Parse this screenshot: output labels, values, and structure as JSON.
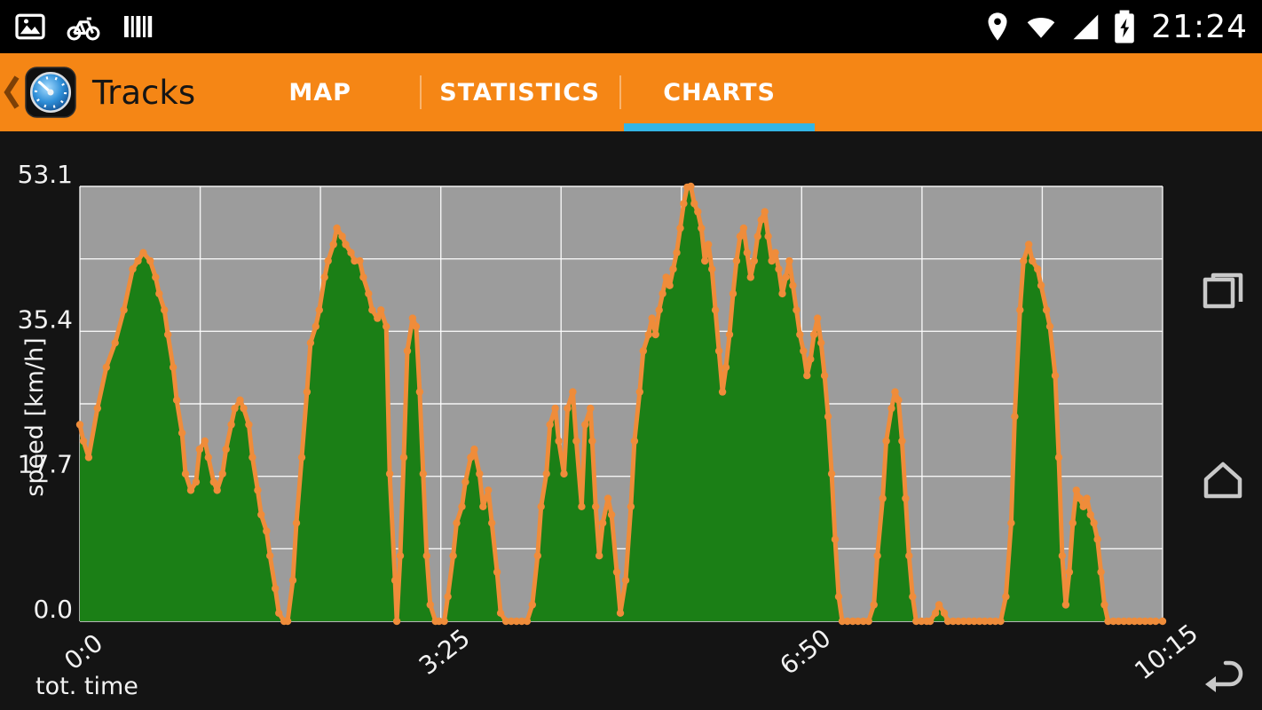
{
  "status_bar": {
    "time": "21:24",
    "left_icons": [
      "gallery-icon",
      "bicycle-icon",
      "barcode-icon"
    ],
    "right_icons": [
      "location-icon",
      "wifi-icon",
      "signal-icon",
      "battery-charging-icon"
    ]
  },
  "action_bar": {
    "title": "Tracks",
    "bar_color": "#f58615",
    "accent_color": "#33b5e5",
    "tabs": [
      {
        "label": "MAP",
        "active": false
      },
      {
        "label": "STATISTICS",
        "active": false
      },
      {
        "label": "CHARTS",
        "active": true
      }
    ]
  },
  "nav_bar": {
    "icons": [
      "recents-icon",
      "home-icon",
      "back-icon"
    ]
  },
  "chart_data": {
    "type": "area",
    "title": "",
    "xlabel": "tot. time",
    "ylabel": "speed [km/h]",
    "x_unit": "minutes",
    "xlim": [
      0,
      615
    ],
    "ylim": [
      0,
      53.1
    ],
    "grid": true,
    "grid_x_divisions": 9,
    "grid_y_divisions": 6,
    "x_ticks": [
      {
        "value": 0,
        "label": "0:0"
      },
      {
        "value": 205,
        "label": "3:25"
      },
      {
        "value": 410,
        "label": "6:50"
      },
      {
        "value": 615,
        "label": "10:15"
      }
    ],
    "y_ticks": [
      {
        "value": 0,
        "label": "0.0"
      },
      {
        "value": 17.7,
        "label": "17.7"
      },
      {
        "value": 35.4,
        "label": "35.4"
      },
      {
        "value": 53.1,
        "label": "53.1"
      }
    ],
    "colors": {
      "plot_bg": "#9c9c9c",
      "grid": "#ffffff",
      "line": "#ef8c3a",
      "fill": "#1b7f16",
      "label": "#f2f2f2"
    },
    "series": [
      {
        "name": "speed",
        "points": [
          [
            0,
            24
          ],
          [
            2,
            22
          ],
          [
            5,
            20
          ],
          [
            10,
            26
          ],
          [
            15,
            31
          ],
          [
            20,
            34
          ],
          [
            25,
            38
          ],
          [
            30,
            43
          ],
          [
            33,
            44
          ],
          [
            36,
            45
          ],
          [
            40,
            44
          ],
          [
            43,
            42
          ],
          [
            45,
            40
          ],
          [
            48,
            38
          ],
          [
            50,
            35
          ],
          [
            53,
            31
          ],
          [
            55,
            27
          ],
          [
            58,
            23
          ],
          [
            60,
            18
          ],
          [
            63,
            16
          ],
          [
            66,
            17
          ],
          [
            68,
            21
          ],
          [
            71,
            22
          ],
          [
            73,
            20
          ],
          [
            76,
            17
          ],
          [
            78,
            16
          ],
          [
            81,
            18
          ],
          [
            83,
            21
          ],
          [
            86,
            24
          ],
          [
            88,
            26
          ],
          [
            91,
            27
          ],
          [
            93,
            26
          ],
          [
            96,
            24
          ],
          [
            98,
            20
          ],
          [
            101,
            16
          ],
          [
            103,
            13
          ],
          [
            106,
            11
          ],
          [
            108,
            8
          ],
          [
            111,
            4
          ],
          [
            113,
            1
          ],
          [
            116,
            0
          ],
          [
            118,
            0
          ],
          [
            121,
            5
          ],
          [
            123,
            12
          ],
          [
            126,
            20
          ],
          [
            129,
            28
          ],
          [
            131,
            34
          ],
          [
            134,
            36
          ],
          [
            136,
            38
          ],
          [
            139,
            42
          ],
          [
            141,
            44
          ],
          [
            144,
            46
          ],
          [
            146,
            48
          ],
          [
            149,
            47
          ],
          [
            151,
            46
          ],
          [
            154,
            45
          ],
          [
            156,
            44
          ],
          [
            159,
            44
          ],
          [
            161,
            42
          ],
          [
            164,
            40
          ],
          [
            166,
            38
          ],
          [
            169,
            37
          ],
          [
            171,
            38
          ],
          [
            174,
            36
          ],
          [
            176,
            18
          ],
          [
            179,
            5
          ],
          [
            180,
            0
          ],
          [
            182,
            8
          ],
          [
            184,
            20
          ],
          [
            186,
            33
          ],
          [
            189,
            37
          ],
          [
            191,
            36
          ],
          [
            193,
            28
          ],
          [
            195,
            18
          ],
          [
            197,
            8
          ],
          [
            199,
            2
          ],
          [
            202,
            0
          ],
          [
            204,
            0
          ],
          [
            207,
            0
          ],
          [
            209,
            3
          ],
          [
            212,
            8
          ],
          [
            214,
            12
          ],
          [
            217,
            14
          ],
          [
            219,
            17
          ],
          [
            222,
            20
          ],
          [
            224,
            21
          ],
          [
            227,
            18
          ],
          [
            229,
            14
          ],
          [
            232,
            16
          ],
          [
            234,
            12
          ],
          [
            237,
            6
          ],
          [
            239,
            1
          ],
          [
            242,
            0
          ],
          [
            245,
            0
          ],
          [
            248,
            0
          ],
          [
            251,
            0
          ],
          [
            254,
            0
          ],
          [
            257,
            2
          ],
          [
            260,
            8
          ],
          [
            262,
            14
          ],
          [
            265,
            18
          ],
          [
            267,
            24
          ],
          [
            270,
            26
          ],
          [
            272,
            22
          ],
          [
            275,
            18
          ],
          [
            277,
            26
          ],
          [
            280,
            28
          ],
          [
            282,
            22
          ],
          [
            285,
            14
          ],
          [
            287,
            24
          ],
          [
            290,
            26
          ],
          [
            291,
            22
          ],
          [
            293,
            14
          ],
          [
            295,
            8
          ],
          [
            297,
            12
          ],
          [
            300,
            15
          ],
          [
            302,
            13
          ],
          [
            305,
            6
          ],
          [
            307,
            1
          ],
          [
            310,
            5
          ],
          [
            313,
            14
          ],
          [
            315,
            22
          ],
          [
            318,
            28
          ],
          [
            320,
            33
          ],
          [
            323,
            35
          ],
          [
            325,
            37
          ],
          [
            327,
            35
          ],
          [
            329,
            38
          ],
          [
            331,
            40
          ],
          [
            333,
            42
          ],
          [
            335,
            41
          ],
          [
            337,
            43
          ],
          [
            339,
            45
          ],
          [
            341,
            48
          ],
          [
            343,
            51
          ],
          [
            345,
            53
          ],
          [
            347,
            53.1
          ],
          [
            349,
            51
          ],
          [
            351,
            50
          ],
          [
            353,
            48
          ],
          [
            355,
            44
          ],
          [
            357,
            46
          ],
          [
            359,
            43
          ],
          [
            361,
            38
          ],
          [
            363,
            33
          ],
          [
            365,
            28
          ],
          [
            367,
            31
          ],
          [
            369,
            35
          ],
          [
            371,
            40
          ],
          [
            373,
            44
          ],
          [
            375,
            47
          ],
          [
            377,
            48
          ],
          [
            379,
            45
          ],
          [
            381,
            42
          ],
          [
            383,
            44
          ],
          [
            385,
            47
          ],
          [
            387,
            49
          ],
          [
            389,
            50
          ],
          [
            391,
            47
          ],
          [
            393,
            44
          ],
          [
            395,
            45
          ],
          [
            397,
            43
          ],
          [
            399,
            40
          ],
          [
            401,
            42
          ],
          [
            403,
            44
          ],
          [
            405,
            41
          ],
          [
            407,
            38
          ],
          [
            409,
            35
          ],
          [
            411,
            33
          ],
          [
            413,
            30
          ],
          [
            415,
            32
          ],
          [
            417,
            35
          ],
          [
            419,
            37
          ],
          [
            421,
            34
          ],
          [
            423,
            30
          ],
          [
            425,
            25
          ],
          [
            427,
            18
          ],
          [
            429,
            10
          ],
          [
            431,
            3
          ],
          [
            433,
            0
          ],
          [
            436,
            0
          ],
          [
            439,
            0
          ],
          [
            442,
            0
          ],
          [
            445,
            0
          ],
          [
            448,
            0
          ],
          [
            451,
            2
          ],
          [
            453,
            8
          ],
          [
            456,
            15
          ],
          [
            458,
            22
          ],
          [
            461,
            26
          ],
          [
            463,
            28
          ],
          [
            465,
            27
          ],
          [
            467,
            22
          ],
          [
            469,
            15
          ],
          [
            471,
            8
          ],
          [
            473,
            3
          ],
          [
            475,
            0
          ],
          [
            478,
            0
          ],
          [
            481,
            0
          ],
          [
            483,
            0
          ],
          [
            486,
            1
          ],
          [
            488,
            2
          ],
          [
            491,
            1
          ],
          [
            493,
            0
          ],
          [
            496,
            0
          ],
          [
            499,
            0
          ],
          [
            502,
            0
          ],
          [
            505,
            0
          ],
          [
            508,
            0
          ],
          [
            511,
            0
          ],
          [
            514,
            0
          ],
          [
            517,
            0
          ],
          [
            520,
            0
          ],
          [
            523,
            0
          ],
          [
            526,
            3
          ],
          [
            529,
            12
          ],
          [
            531,
            25
          ],
          [
            534,
            38
          ],
          [
            536,
            44
          ],
          [
            539,
            46
          ],
          [
            541,
            44
          ],
          [
            544,
            43
          ],
          [
            546,
            41
          ],
          [
            549,
            38
          ],
          [
            551,
            36
          ],
          [
            554,
            30
          ],
          [
            556,
            20
          ],
          [
            558,
            8
          ],
          [
            560,
            2
          ],
          [
            562,
            6
          ],
          [
            564,
            12
          ],
          [
            566,
            16
          ],
          [
            568,
            15
          ],
          [
            570,
            14
          ],
          [
            572,
            15
          ],
          [
            574,
            13
          ],
          [
            576,
            12
          ],
          [
            578,
            10
          ],
          [
            580,
            6
          ],
          [
            582,
            2
          ],
          [
            584,
            0
          ],
          [
            587,
            0
          ],
          [
            590,
            0
          ],
          [
            593,
            0
          ],
          [
            596,
            0
          ],
          [
            599,
            0
          ],
          [
            602,
            0
          ],
          [
            605,
            0
          ],
          [
            608,
            0
          ],
          [
            611,
            0
          ],
          [
            615,
            0
          ]
        ]
      }
    ]
  }
}
